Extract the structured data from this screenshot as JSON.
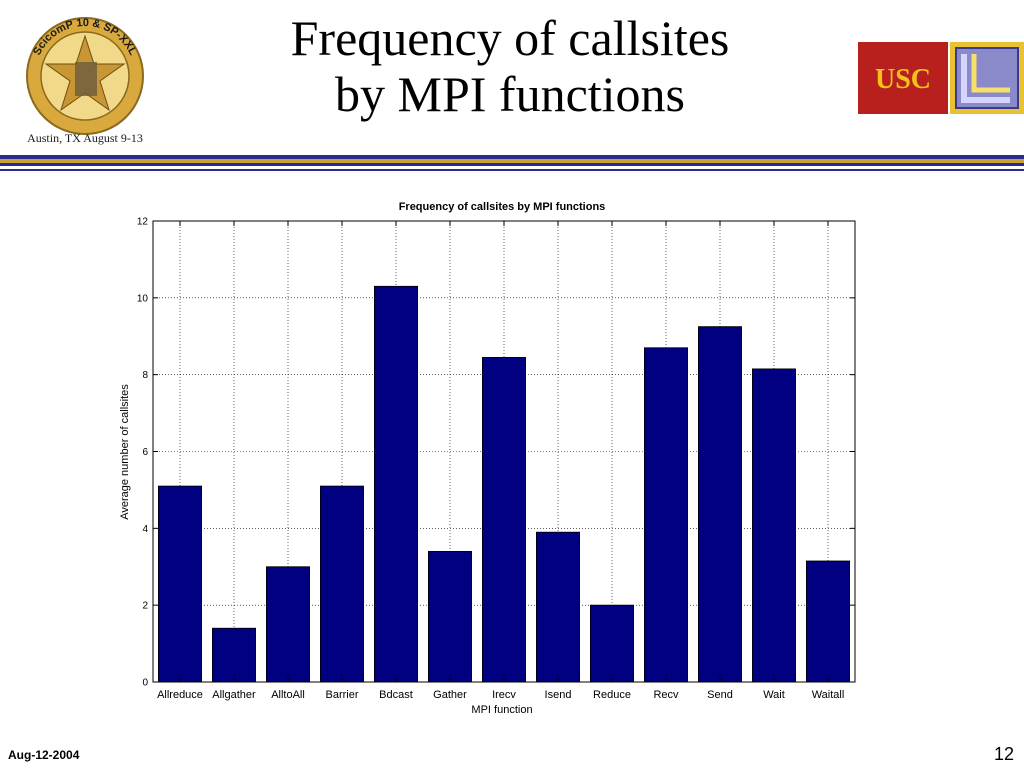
{
  "slide": {
    "title_line1": "Frequency of callsites",
    "title_line2": "by MPI functions",
    "footer_date": "Aug-12-2004",
    "page_number": "12"
  },
  "logos": {
    "left": {
      "arc_text": "ScicomP 10 & SP-XXL",
      "bottom_text": "Austin, TX   August 9-13"
    },
    "right": {
      "usc_text": "USC"
    }
  },
  "colors": {
    "bar": "#000080",
    "rule_blue": "#2b2a8f",
    "rule_gold": "#c8a233",
    "usc_red": "#b8201e",
    "usc_gold": "#f2c21b"
  },
  "chart_data": {
    "type": "bar",
    "title": "Frequency of callsites by MPI functions",
    "xlabel": "MPI function",
    "ylabel": "Average number of callsites",
    "categories": [
      "Allreduce",
      "Allgather",
      "AlltoAll",
      "Barrier",
      "Bdcast",
      "Gather",
      "Irecv",
      "Isend",
      "Reduce",
      "Recv",
      "Send",
      "Wait",
      "Waitall"
    ],
    "values": [
      5.1,
      1.4,
      3.0,
      5.1,
      10.3,
      3.4,
      8.45,
      3.9,
      2.0,
      8.7,
      9.25,
      8.15,
      3.15
    ],
    "ylim": [
      0,
      12
    ],
    "yticks": [
      0,
      2,
      4,
      6,
      8,
      10,
      12
    ],
    "grid": true
  }
}
